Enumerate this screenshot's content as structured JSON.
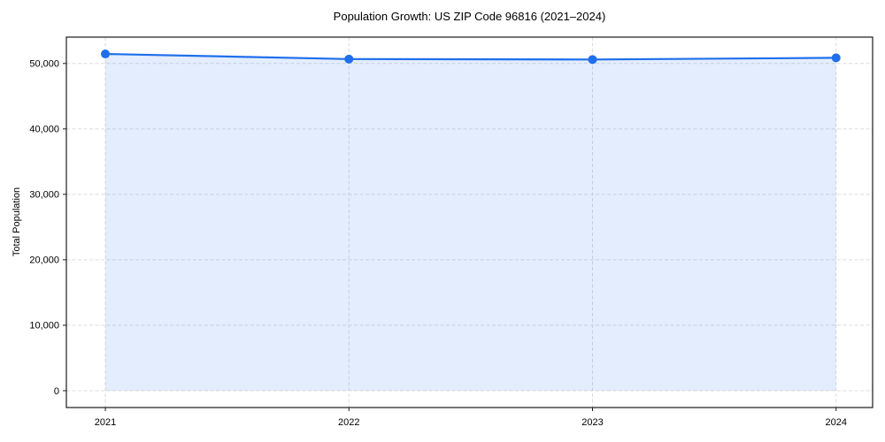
{
  "chart_data": {
    "type": "area",
    "title": "Population Growth: US ZIP Code 96816 (2021–2024)",
    "xlabel": "",
    "ylabel": "Total Population",
    "x": [
      2021,
      2022,
      2023,
      2024
    ],
    "series": [
      {
        "name": "Total Population",
        "values": [
          51450,
          50670,
          50600,
          50860
        ]
      }
    ],
    "xticks": [
      2021,
      2022,
      2023,
      2024
    ],
    "xtick_labels": [
      "2021",
      "2022",
      "2023",
      "2024"
    ],
    "yticks": [
      0,
      10000,
      20000,
      30000,
      40000,
      50000
    ],
    "ytick_labels": [
      "0",
      "10,000",
      "20,000",
      "30,000",
      "40,000",
      "50,000"
    ],
    "xlim": [
      2020.84,
      2024.15
    ],
    "ylim": [
      -2572,
      54022
    ],
    "fill_baseline": 0,
    "grid": true,
    "grid_style": "dashed",
    "legend": false,
    "colors": {
      "line": "#1f6feb",
      "marker": "#1f6feb",
      "area_fill": "rgba(31,111,235,0.12)",
      "grid": "#dcdcdc",
      "spine": "#1a1a1a",
      "text": "#000000",
      "background": "#ffffff"
    },
    "marker_radius": 5,
    "line_width": 2.2
  }
}
